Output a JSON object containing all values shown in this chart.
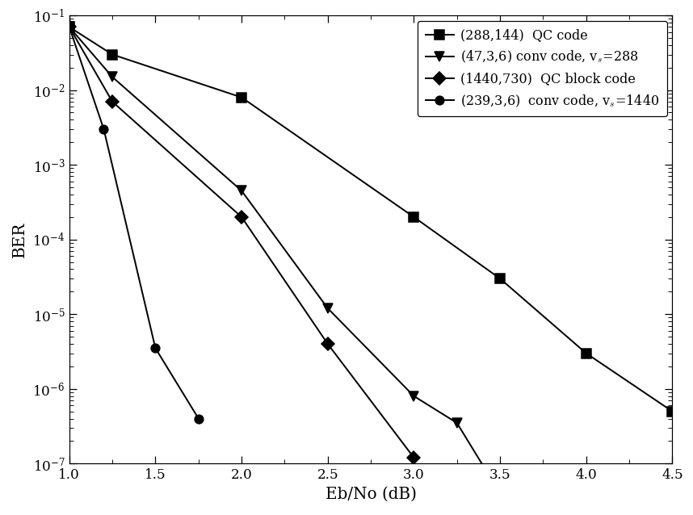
{
  "series": [
    {
      "label": "(288,144)  QC code",
      "marker": "s",
      "markersize": 8,
      "x": [
        1.0,
        1.25,
        2.0,
        3.0,
        3.5,
        4.0,
        4.5
      ],
      "y": [
        0.07,
        0.03,
        0.008,
        0.0002,
        3e-05,
        3e-06,
        5e-07
      ]
    },
    {
      "label": "(47,3,6) conv code, v_s=288",
      "marker": "v",
      "markersize": 8,
      "x": [
        1.0,
        1.25,
        2.0,
        2.5,
        3.0,
        3.25,
        3.5
      ],
      "y": [
        0.07,
        0.015,
        0.00045,
        1.2e-05,
        8e-07,
        3.5e-07,
        4e-08
      ]
    },
    {
      "label": "(1440,730)  QC block code",
      "marker": "D",
      "markersize": 7,
      "x": [
        1.0,
        1.25,
        2.0,
        2.5,
        3.0
      ],
      "y": [
        0.07,
        0.007,
        0.0002,
        4e-06,
        1.2e-07
      ]
    },
    {
      "label": "(239,3,6)  conv code, v_s=1440",
      "marker": "o",
      "markersize": 7,
      "x": [
        1.0,
        1.2,
        1.5,
        1.75
      ],
      "y": [
        0.07,
        0.003,
        3.5e-06,
        4e-07
      ]
    }
  ],
  "xlabel": "Eb/No (dB)",
  "ylabel": "BER",
  "xlim": [
    1.0,
    4.5
  ],
  "ylim": [
    1e-07,
    0.1
  ],
  "color": "#000000",
  "background": "#ffffff",
  "xticks": [
    1.0,
    1.5,
    2.0,
    2.5,
    3.0,
    3.5,
    4.0,
    4.5
  ],
  "label_fontsize": 13,
  "tick_fontsize": 11,
  "legend_fontsize": 10.5
}
